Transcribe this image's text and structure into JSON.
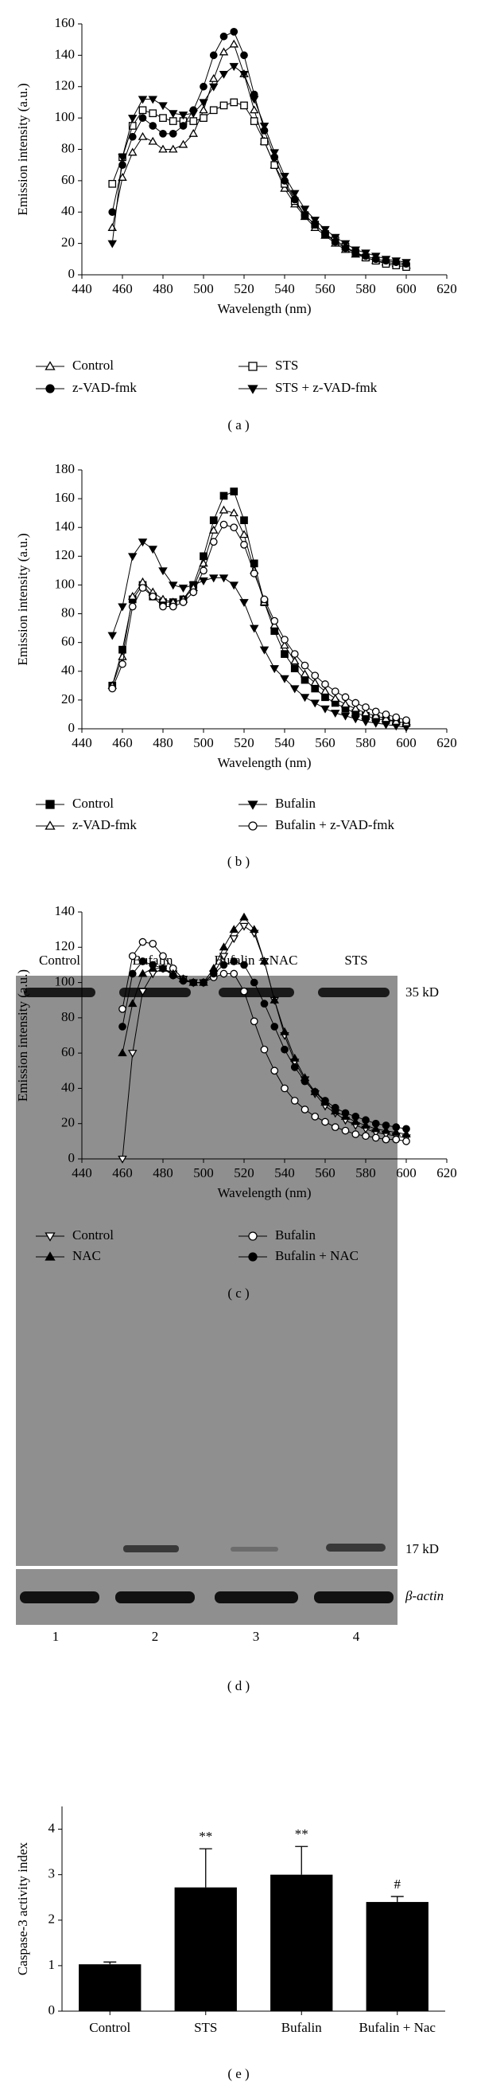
{
  "chart_data": [
    {
      "type": "line",
      "panel_label": "( a )",
      "x_label": "Wavelength (nm)",
      "y_label": "Emission intensity (a.u.)",
      "xlim": [
        440,
        620
      ],
      "xticks": [
        440,
        460,
        480,
        500,
        520,
        540,
        560,
        580,
        600,
        620
      ],
      "ylim": [
        0,
        160
      ],
      "yticks": [
        0,
        20,
        40,
        60,
        80,
        100,
        120,
        140,
        160
      ],
      "grid": false,
      "x": [
        455,
        460,
        465,
        470,
        475,
        480,
        485,
        490,
        495,
        500,
        505,
        510,
        515,
        520,
        525,
        530,
        535,
        540,
        545,
        550,
        555,
        560,
        565,
        570,
        575,
        580,
        585,
        590,
        595,
        600
      ],
      "series": [
        {
          "name": "Control",
          "color": "#000000",
          "marker": "triangle-up",
          "filled": false,
          "values": [
            30,
            62,
            78,
            88,
            85,
            80,
            80,
            83,
            90,
            105,
            125,
            142,
            147,
            128,
            105,
            85,
            70,
            55,
            45,
            37,
            30,
            25,
            20,
            16,
            13,
            11,
            9,
            8,
            7,
            6
          ]
        },
        {
          "name": "STS",
          "color": "#000000",
          "marker": "square",
          "filled": false,
          "values": [
            58,
            75,
            95,
            105,
            103,
            100,
            98,
            98,
            98,
            100,
            105,
            108,
            110,
            108,
            98,
            85,
            70,
            58,
            47,
            38,
            32,
            26,
            22,
            18,
            14,
            11,
            9,
            7,
            6,
            5
          ]
        },
        {
          "name": "z-VAD-fmk",
          "color": "#000000",
          "marker": "circle",
          "filled": true,
          "values": [
            40,
            70,
            88,
            100,
            95,
            90,
            90,
            95,
            105,
            120,
            140,
            152,
            155,
            140,
            115,
            92,
            75,
            60,
            48,
            38,
            32,
            26,
            21,
            17,
            14,
            12,
            10,
            9,
            8,
            7
          ]
        },
        {
          "name": "STS + z-VAD-fmk",
          "color": "#000000",
          "marker": "triangle-down",
          "filled": true,
          "values": [
            20,
            75,
            100,
            112,
            112,
            108,
            103,
            102,
            103,
            110,
            120,
            128,
            133,
            128,
            112,
            95,
            78,
            63,
            52,
            42,
            35,
            29,
            24,
            20,
            16,
            14,
            12,
            10,
            9,
            8
          ]
        }
      ]
    },
    {
      "type": "line",
      "panel_label": "( b )",
      "x_label": "Wavelength (nm)",
      "y_label": "Emission intensity (a.u.)",
      "xlim": [
        440,
        620
      ],
      "xticks": [
        440,
        460,
        480,
        500,
        520,
        540,
        560,
        580,
        600,
        620
      ],
      "ylim": [
        0,
        180
      ],
      "yticks": [
        0,
        20,
        40,
        60,
        80,
        100,
        120,
        140,
        160,
        180
      ],
      "grid": false,
      "x": [
        455,
        460,
        465,
        470,
        475,
        480,
        485,
        490,
        495,
        500,
        505,
        510,
        515,
        520,
        525,
        530,
        535,
        540,
        545,
        550,
        555,
        560,
        565,
        570,
        575,
        580,
        585,
        590,
        595,
        600
      ],
      "series": [
        {
          "name": "Control",
          "color": "#000000",
          "marker": "square",
          "filled": true,
          "values": [
            30,
            55,
            90,
            100,
            92,
            88,
            88,
            90,
            100,
            120,
            145,
            162,
            165,
            145,
            115,
            88,
            68,
            52,
            42,
            34,
            28,
            22,
            18,
            14,
            11,
            9,
            7,
            6,
            5,
            4
          ]
        },
        {
          "name": "Bufalin",
          "color": "#000000",
          "marker": "triangle-down",
          "filled": true,
          "values": [
            65,
            85,
            120,
            130,
            125,
            110,
            100,
            98,
            100,
            103,
            105,
            105,
            100,
            88,
            70,
            55,
            42,
            35,
            28,
            22,
            18,
            14,
            11,
            9,
            7,
            5,
            4,
            3,
            2,
            1
          ]
        },
        {
          "name": "z-VAD-fmk",
          "color": "#000000",
          "marker": "triangle-up",
          "filled": false,
          "values": [
            30,
            50,
            92,
            102,
            95,
            90,
            88,
            90,
            98,
            115,
            138,
            152,
            150,
            135,
            110,
            88,
            72,
            58,
            47,
            38,
            32,
            26,
            21,
            17,
            14,
            11,
            9,
            7,
            5,
            4
          ]
        },
        {
          "name": "Bufalin + z-VAD-fmk",
          "color": "#000000",
          "marker": "circle",
          "filled": false,
          "values": [
            28,
            45,
            85,
            98,
            92,
            85,
            85,
            88,
            95,
            110,
            130,
            142,
            140,
            128,
            108,
            90,
            75,
            62,
            52,
            44,
            37,
            31,
            26,
            22,
            18,
            15,
            12,
            10,
            8,
            6
          ]
        }
      ]
    },
    {
      "type": "line",
      "panel_label": "( c )",
      "x_label": "Wavelength (nm)",
      "y_label": "Emission intensity (a.u.)",
      "xlim": [
        440,
        620
      ],
      "xticks": [
        440,
        460,
        480,
        500,
        520,
        540,
        560,
        580,
        600,
        620
      ],
      "ylim": [
        0,
        140
      ],
      "yticks": [
        0,
        20,
        40,
        60,
        80,
        100,
        120,
        140
      ],
      "grid": false,
      "x": [
        460,
        465,
        470,
        475,
        480,
        485,
        490,
        495,
        500,
        505,
        510,
        515,
        520,
        525,
        530,
        535,
        540,
        545,
        550,
        555,
        560,
        565,
        570,
        575,
        580,
        585,
        590,
        595,
        600
      ],
      "series": [
        {
          "name": "Control",
          "color": "#000000",
          "marker": "triangle-down",
          "filled": false,
          "values": [
            0,
            60,
            95,
            105,
            108,
            105,
            102,
            100,
            100,
            105,
            115,
            125,
            132,
            128,
            112,
            90,
            70,
            55,
            45,
            37,
            30,
            26,
            22,
            19,
            17,
            15,
            14,
            13,
            12
          ]
        },
        {
          "name": "Bufalin",
          "color": "#000000",
          "marker": "circle",
          "filled": false,
          "values": [
            85,
            115,
            123,
            122,
            115,
            108,
            102,
            100,
            100,
            103,
            105,
            105,
            95,
            78,
            62,
            50,
            40,
            33,
            28,
            24,
            21,
            18,
            16,
            14,
            13,
            12,
            11,
            11,
            10
          ]
        },
        {
          "name": "NAC",
          "color": "#000000",
          "marker": "triangle-up",
          "filled": true,
          "values": [
            60,
            88,
            105,
            108,
            108,
            105,
            102,
            100,
            100,
            108,
            120,
            130,
            137,
            130,
            112,
            90,
            72,
            57,
            46,
            38,
            32,
            27,
            24,
            21,
            19,
            17,
            16,
            15,
            14
          ]
        },
        {
          "name": "Bufalin + NAC",
          "color": "#000000",
          "marker": "circle",
          "filled": true,
          "values": [
            75,
            105,
            112,
            110,
            108,
            104,
            101,
            100,
            100,
            105,
            110,
            112,
            110,
            100,
            88,
            75,
            62,
            52,
            44,
            38,
            33,
            29,
            26,
            24,
            22,
            20,
            19,
            18,
            17
          ]
        }
      ]
    },
    {
      "type": "bar",
      "panel_label": "( e )",
      "y_label": "Caspase-3 activity index",
      "categories": [
        "Control",
        "STS",
        "Bufalin",
        "Bufalin + Nac"
      ],
      "values": [
        1.03,
        2.72,
        3.0,
        2.4
      ],
      "errors": [
        0.05,
        0.85,
        0.62,
        0.12
      ],
      "annotations": [
        null,
        "**",
        "**",
        "#"
      ],
      "color": "#000000",
      "ylim": [
        0,
        4.5
      ],
      "yticks": [
        0,
        1,
        2,
        3,
        4
      ],
      "grid": false
    }
  ],
  "blot": {
    "panel_label": "( d )",
    "lanes": [
      "Control",
      "Bufalin",
      "Bufalin + NAC",
      "STS"
    ],
    "lane_numbers": [
      "1",
      "2",
      "3",
      "4"
    ],
    "markers": [
      "35 kD",
      "17 kD"
    ],
    "loading_control": "β-actin"
  }
}
